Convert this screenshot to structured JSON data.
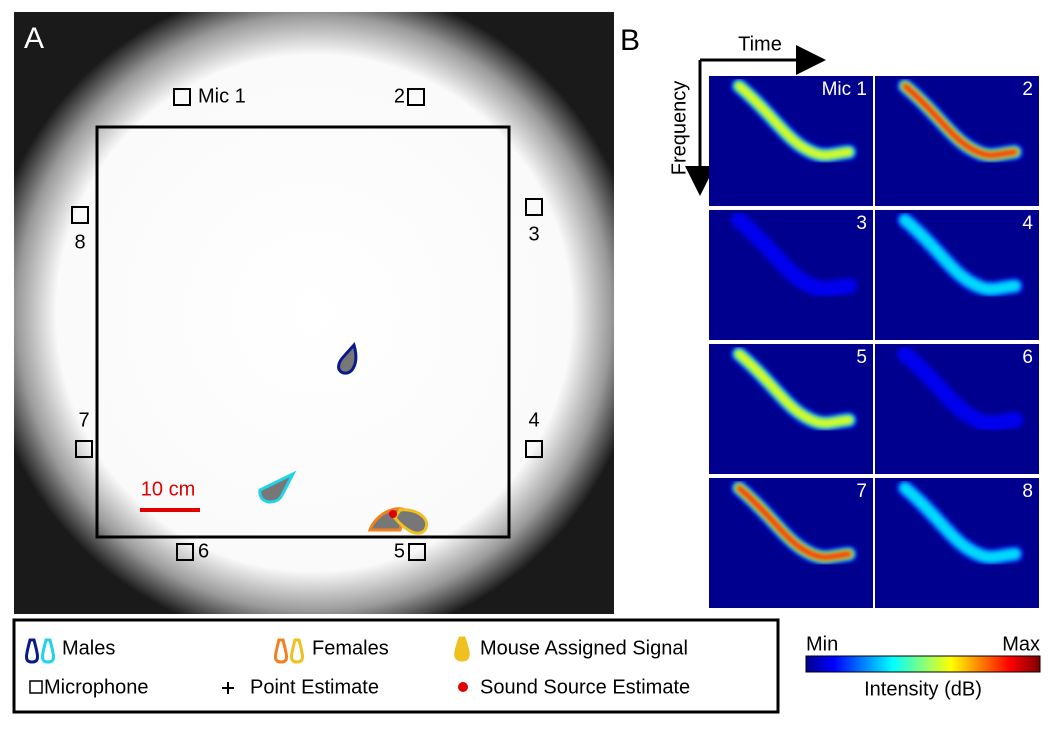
{
  "panel_a": {
    "label": "A",
    "mics": [
      "Mic 1",
      "2",
      "3",
      "4",
      "5",
      "6",
      "7",
      "8"
    ],
    "scale_bar": "10 cm"
  },
  "panel_b": {
    "label": "B",
    "time_axis": "Time",
    "frequency_axis": "Frequency",
    "spectrograms": [
      "Mic 1",
      "2",
      "3",
      "4",
      "5",
      "6",
      "7",
      "8"
    ]
  },
  "legend": {
    "males": "Males",
    "females": "Females",
    "assigned": "Mouse Assigned Signal",
    "microphone": "Microphone",
    "point": "Point Estimate",
    "source": "Sound Source Estimate"
  },
  "colorbar": {
    "min": "Min",
    "max": "Max",
    "label": "Intensity (dB)"
  }
}
